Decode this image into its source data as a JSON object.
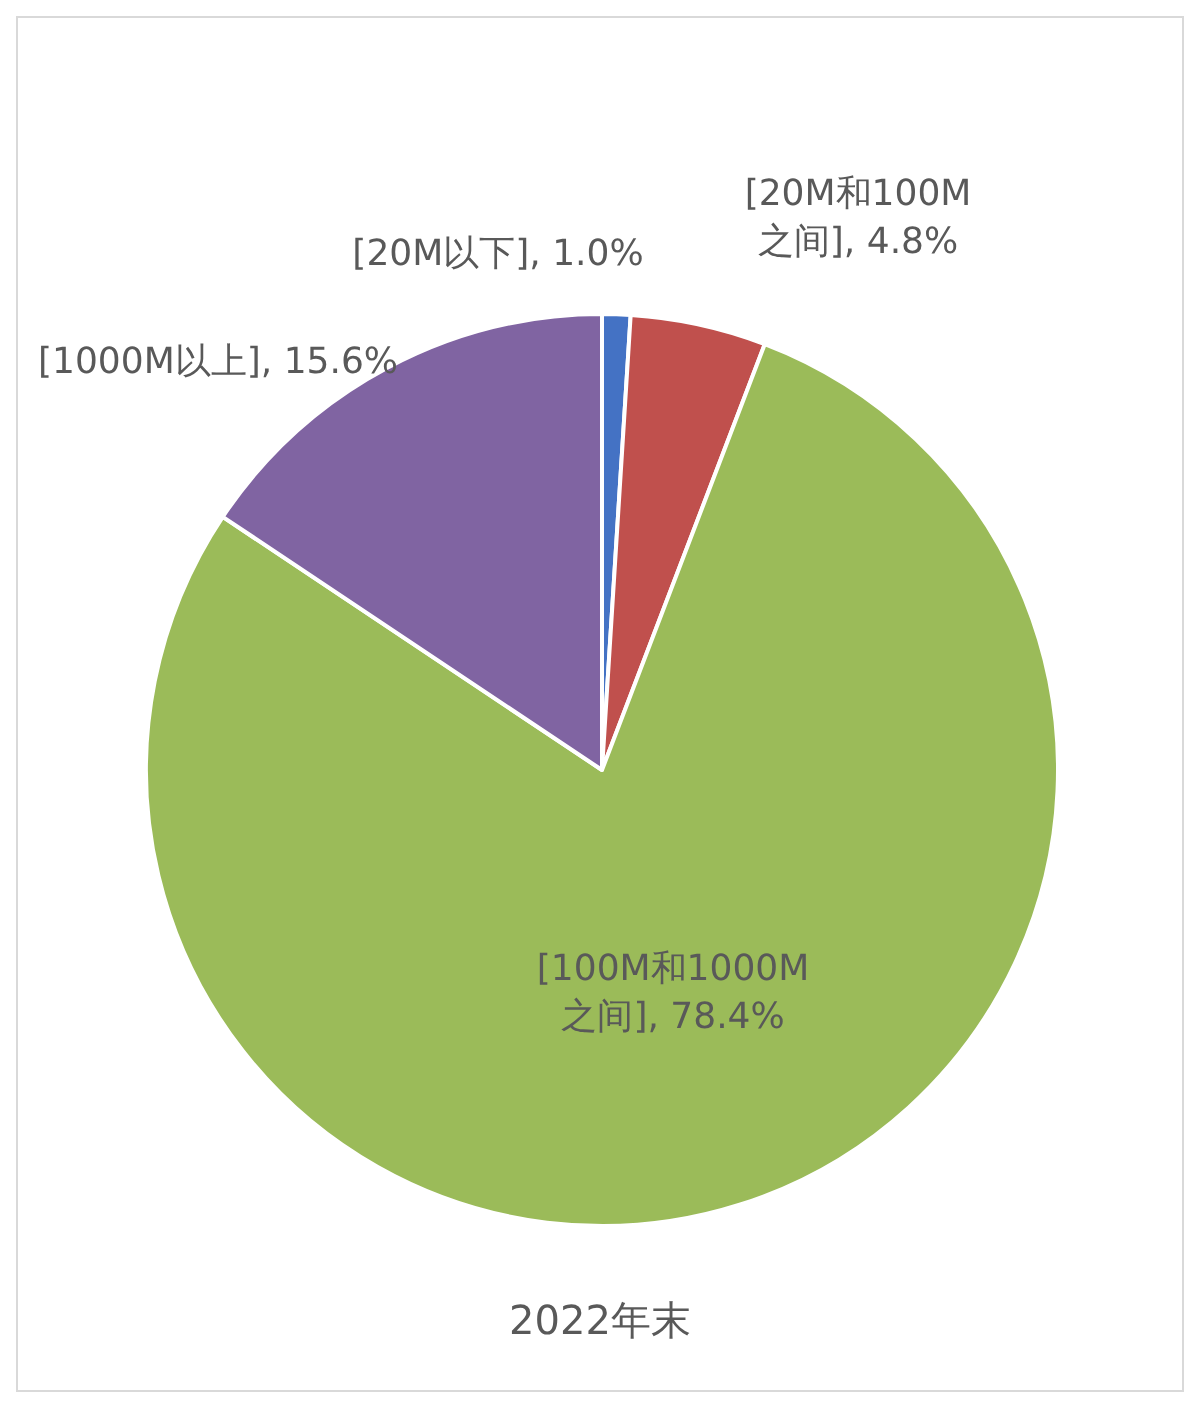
{
  "chart_data": {
    "type": "pie",
    "title": "2022年末",
    "categories": [
      "[20M以下]",
      "[20M和100M之间]",
      "[100M和1000M之间]",
      "[1000M以上]"
    ],
    "values": [
      1.0,
      4.8,
      78.4,
      15.6
    ],
    "value_labels": [
      "1.0%",
      "4.8%",
      "78.4%",
      "15.6%"
    ],
    "colors": [
      "#4472c4",
      "#c0504d",
      "#9bbb59",
      "#8064a2"
    ],
    "legend": false
  }
}
